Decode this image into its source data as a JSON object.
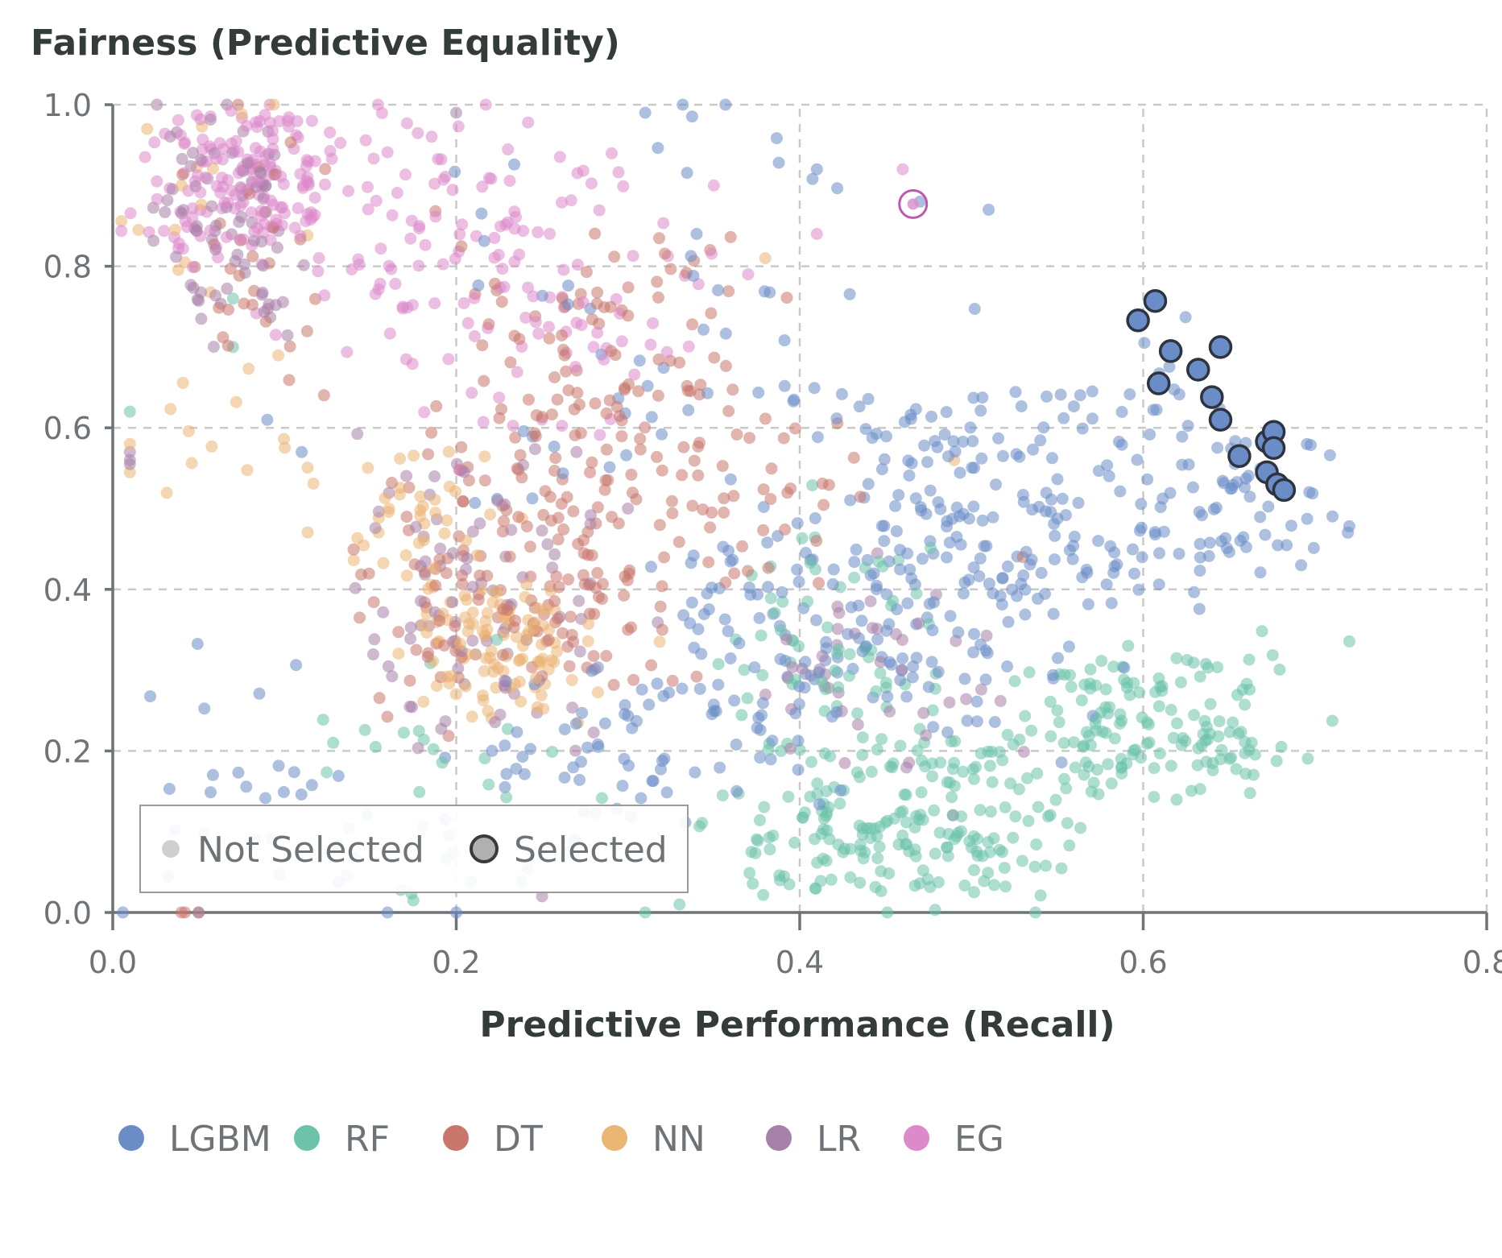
{
  "chart_data": {
    "type": "scatter",
    "title": "",
    "ylabel": "Fairness (Predictive Equality)",
    "xlabel": "Predictive Performance (Recall)",
    "xlim": [
      0.0,
      0.8
    ],
    "ylim": [
      0.0,
      1.0
    ],
    "x_ticks": [
      "0.0",
      "0.2",
      "0.4",
      "0.6",
      "0.8"
    ],
    "y_ticks": [
      "0.0",
      "0.2",
      "0.4",
      "0.6",
      "0.8",
      "1.0"
    ],
    "grid": true,
    "selection_legend": {
      "not_selected": "Not Selected",
      "selected": "Selected",
      "placement": "bottom-left"
    },
    "series": [
      {
        "name": "LGBM",
        "color": "#6a8cc7",
        "clusters": [
          {
            "n": 190,
            "x": [
              0.43,
              0.62
            ],
            "y": [
              0.38,
              0.66
            ],
            "r": 0.09
          },
          {
            "n": 140,
            "x": [
              0.32,
              0.55
            ],
            "y": [
              0.22,
              0.46
            ],
            "r": 0.1
          },
          {
            "n": 70,
            "x": [
              0.22,
              0.4
            ],
            "y": [
              0.12,
              0.3
            ],
            "r": 0.08
          },
          {
            "n": 55,
            "x": [
              0.18,
              0.42
            ],
            "y": [
              0.45,
              0.97
            ],
            "r": 0.12
          },
          {
            "n": 25,
            "x": [
              0.02,
              0.14
            ],
            "y": [
              0.0,
              0.35
            ],
            "r": 0.1
          },
          {
            "n": 60,
            "x": [
              0.62,
              0.71
            ],
            "y": [
              0.4,
              0.62
            ],
            "r": 0.06
          }
        ],
        "points": [
          [
            0.47,
            0.88
          ],
          [
            0.51,
            0.87
          ],
          [
            0.41,
            0.92
          ],
          [
            0.34,
            0.84
          ],
          [
            0.31,
            0.99
          ],
          [
            0.09,
            0.61
          ],
          [
            0.11,
            0.57
          ],
          [
            0.2,
            0.0
          ],
          [
            0.16,
            0.0
          ],
          [
            0.05,
            0.0
          ]
        ]
      },
      {
        "name": "RF",
        "color": "#6cc3aa",
        "clusters": [
          {
            "n": 210,
            "x": [
              0.37,
              0.54
            ],
            "y": [
              0.02,
              0.22
            ],
            "r": 0.09
          },
          {
            "n": 150,
            "x": [
              0.54,
              0.68
            ],
            "y": [
              0.14,
              0.32
            ],
            "r": 0.07
          },
          {
            "n": 60,
            "x": [
              0.36,
              0.48
            ],
            "y": [
              0.22,
              0.44
            ],
            "r": 0.07
          },
          {
            "n": 35,
            "x": [
              0.1,
              0.3
            ],
            "y": [
              0.0,
              0.28
            ],
            "r": 0.12
          }
        ],
        "points": [
          [
            0.01,
            0.62
          ],
          [
            0.07,
            0.7
          ],
          [
            0.07,
            0.76
          ],
          [
            0.31,
            0.0
          ],
          [
            0.33,
            0.01
          ]
        ]
      },
      {
        "name": "DT",
        "color": "#c9766c",
        "clusters": [
          {
            "n": 140,
            "x": [
              0.15,
              0.32
            ],
            "y": [
              0.28,
              0.56
            ],
            "r": 0.1
          },
          {
            "n": 110,
            "x": [
              0.2,
              0.36
            ],
            "y": [
              0.5,
              0.84
            ],
            "r": 0.11
          },
          {
            "n": 50,
            "x": [
              0.26,
              0.44
            ],
            "y": [
              0.4,
              0.62
            ],
            "r": 0.09
          },
          {
            "n": 30,
            "x": [
              0.05,
              0.12
            ],
            "y": [
              0.68,
              0.94
            ],
            "r": 0.06
          }
        ],
        "points": [
          [
            0.04,
            0.0
          ],
          [
            0.05,
            0.0
          ],
          [
            0.042,
            0.0
          ],
          [
            0.3,
            0.35
          ],
          [
            0.32,
            0.35
          ],
          [
            0.53,
            0.44
          ]
        ]
      },
      {
        "name": "NN",
        "color": "#ebb574",
        "clusters": [
          {
            "n": 110,
            "x": [
              0.18,
              0.27
            ],
            "y": [
              0.24,
              0.4
            ],
            "r": 0.05
          },
          {
            "n": 40,
            "x": [
              0.14,
              0.22
            ],
            "y": [
              0.4,
              0.58
            ],
            "r": 0.06
          },
          {
            "n": 25,
            "x": [
              0.02,
              0.12
            ],
            "y": [
              0.52,
              0.98
            ],
            "r": 0.07
          }
        ],
        "points": [
          [
            0.01,
            0.58
          ],
          [
            0.01,
            0.545
          ],
          [
            0.02,
            0.97
          ],
          [
            0.015,
            0.845
          ],
          [
            0.04,
            0.9
          ],
          [
            0.38,
            0.81
          ],
          [
            0.49,
            0.56
          ]
        ]
      },
      {
        "name": "LR",
        "color": "#a780a7",
        "clusters": [
          {
            "n": 80,
            "x": [
              0.03,
              0.1
            ],
            "y": [
              0.72,
              0.98
            ],
            "r": 0.05
          },
          {
            "n": 90,
            "x": [
              0.14,
              0.28
            ],
            "y": [
              0.2,
              0.6
            ],
            "r": 0.09
          },
          {
            "n": 45,
            "x": [
              0.38,
              0.52
            ],
            "y": [
              0.16,
              0.42
            ],
            "r": 0.09
          }
        ],
        "points": [
          [
            0.01,
            0.57
          ],
          [
            0.01,
            0.555
          ],
          [
            0.01,
            0.56
          ],
          [
            0.2,
            0.99
          ],
          [
            0.25,
            0.02
          ],
          [
            0.27,
            0.57
          ],
          [
            0.3,
            0.5
          ]
        ]
      },
      {
        "name": "EG",
        "color": "#dd89cb",
        "clusters": [
          {
            "n": 150,
            "x": [
              0.03,
              0.12
            ],
            "y": [
              0.82,
              1.0
            ],
            "r": 0.06
          },
          {
            "n": 110,
            "x": [
              0.08,
              0.3
            ],
            "y": [
              0.7,
              0.98
            ],
            "r": 0.1
          },
          {
            "n": 50,
            "x": [
              0.16,
              0.34
            ],
            "y": [
              0.58,
              0.82
            ],
            "r": 0.09
          }
        ],
        "points": [
          [
            0.35,
            0.9
          ],
          [
            0.41,
            0.84
          ],
          [
            0.37,
            0.79
          ],
          [
            0.46,
            0.92
          ],
          [
            0.27,
            0.73
          ],
          [
            0.28,
            0.7
          ]
        ]
      }
    ],
    "highlighted": {
      "series": "EG",
      "x": 0.466,
      "y": 0.877
    },
    "selected_points": [
      [
        0.607,
        0.757
      ],
      [
        0.597,
        0.733
      ],
      [
        0.616,
        0.695
      ],
      [
        0.645,
        0.7
      ],
      [
        0.609,
        0.655
      ],
      [
        0.632,
        0.672
      ],
      [
        0.64,
        0.638
      ],
      [
        0.645,
        0.61
      ],
      [
        0.656,
        0.565
      ],
      [
        0.672,
        0.583
      ],
      [
        0.676,
        0.595
      ],
      [
        0.676,
        0.575
      ],
      [
        0.672,
        0.545
      ],
      [
        0.678,
        0.53
      ],
      [
        0.682,
        0.523
      ]
    ],
    "selected_series": "LGBM"
  }
}
